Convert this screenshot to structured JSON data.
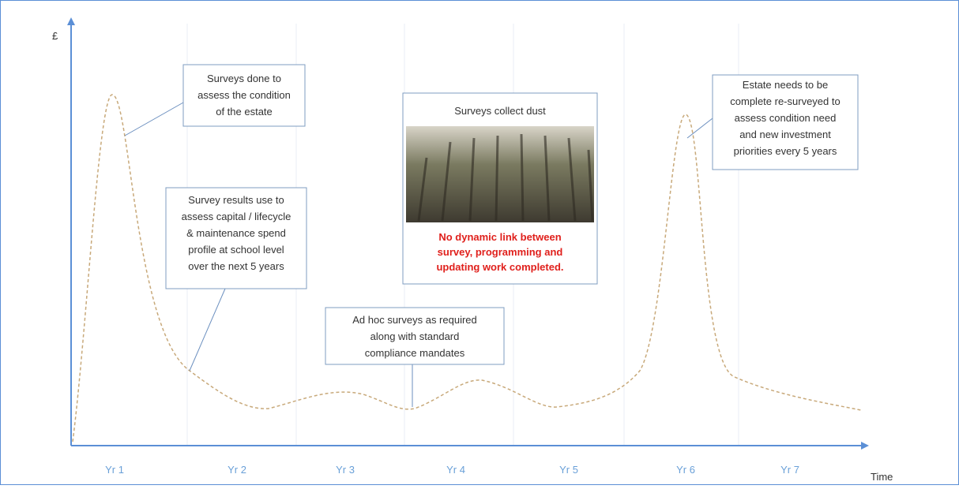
{
  "axes": {
    "y_label": "£",
    "x_label": "Time",
    "years": [
      "Yr 1",
      "Yr 2",
      "Yr 3",
      "Yr 4",
      "Yr 5",
      "Yr 6",
      "Yr 7"
    ]
  },
  "callouts": [
    {
      "lines": [
        "Surveys done to",
        "assess the condition",
        "of the estate"
      ]
    },
    {
      "lines": [
        "Survey results use to",
        "assess capital / lifecycle",
        "& maintenance spend",
        "profile at school level",
        "over the next 5 years"
      ]
    },
    {
      "lines": [
        "Ad hoc surveys as required",
        "along with standard",
        "compliance mandates"
      ]
    },
    {
      "lines": [
        "Estate needs to be",
        "complete re-surveyed to",
        "assess condition need",
        "and new investment",
        "priorities every 5 years"
      ]
    }
  ],
  "panel": {
    "title": "Surveys collect dust",
    "note": [
      "No dynamic link between",
      "survey, programming and",
      "updating work completed."
    ]
  }
}
